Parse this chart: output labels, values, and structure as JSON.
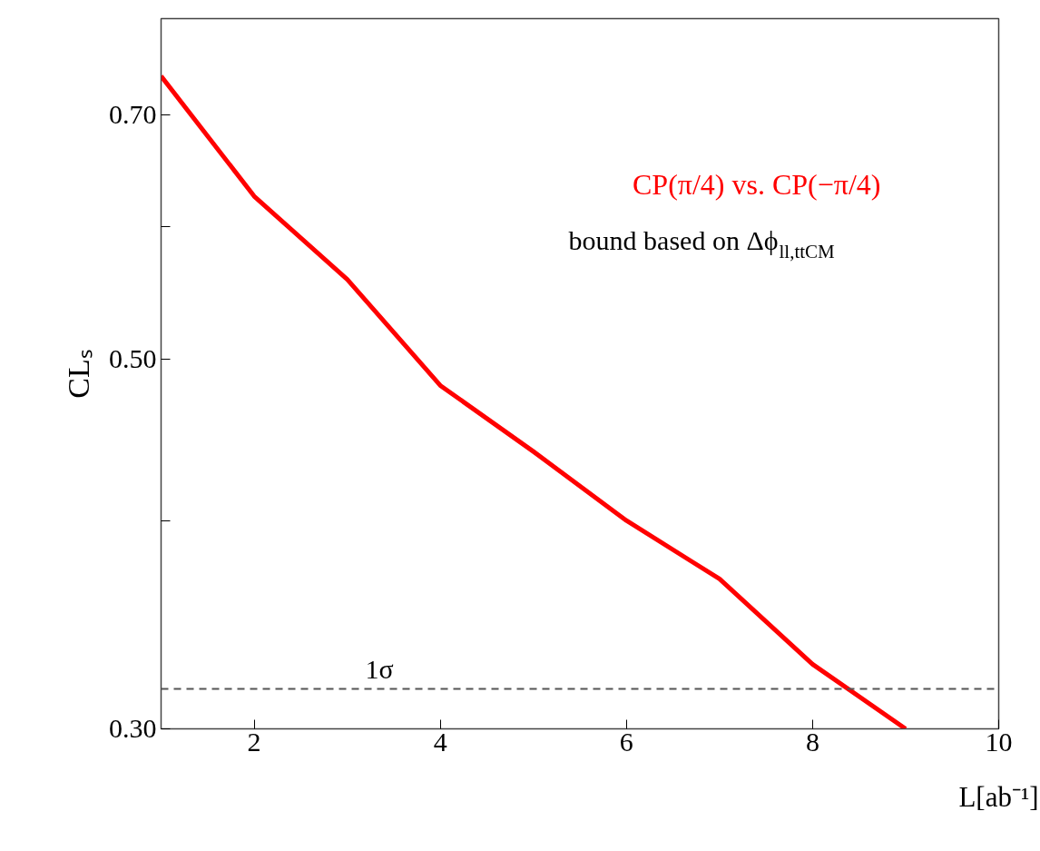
{
  "chart_data": {
    "type": "line",
    "xlabel": "L[ab⁻¹]",
    "ylabel": "CLₛ",
    "x": [
      1,
      2,
      3,
      4,
      5,
      6,
      7,
      8,
      9
    ],
    "series": [
      {
        "name": "CP(π/4) vs. CP(−π/4)",
        "color": "#ff0000",
        "values": [
          0.739,
          0.626,
          0.558,
          0.482,
          0.44,
          0.4,
          0.369,
          0.328,
          0.3
        ]
      }
    ],
    "log": "y",
    "xlim": [
      1,
      10
    ],
    "ylim": [
      0.3,
      0.8
    ],
    "xticks": [
      2,
      4,
      6,
      8,
      10
    ],
    "yticks": [
      {
        "value": 0.3,
        "label": "0.30"
      },
      {
        "value": 0.4,
        "label": null
      },
      {
        "value": 0.5,
        "label": "0.50"
      },
      {
        "value": 0.6,
        "label": null
      },
      {
        "value": 0.7,
        "label": "0.70"
      }
    ],
    "ref_lines": [
      {
        "axis": "y",
        "value": 0.317,
        "label": "1σ",
        "color": "#555555",
        "line_style": "dashed"
      }
    ],
    "annotations": [
      "bound based on Δϕ$_{ll,ttCM}$"
    ],
    "grid": false,
    "marker": "none",
    "line_style": "solid"
  }
}
